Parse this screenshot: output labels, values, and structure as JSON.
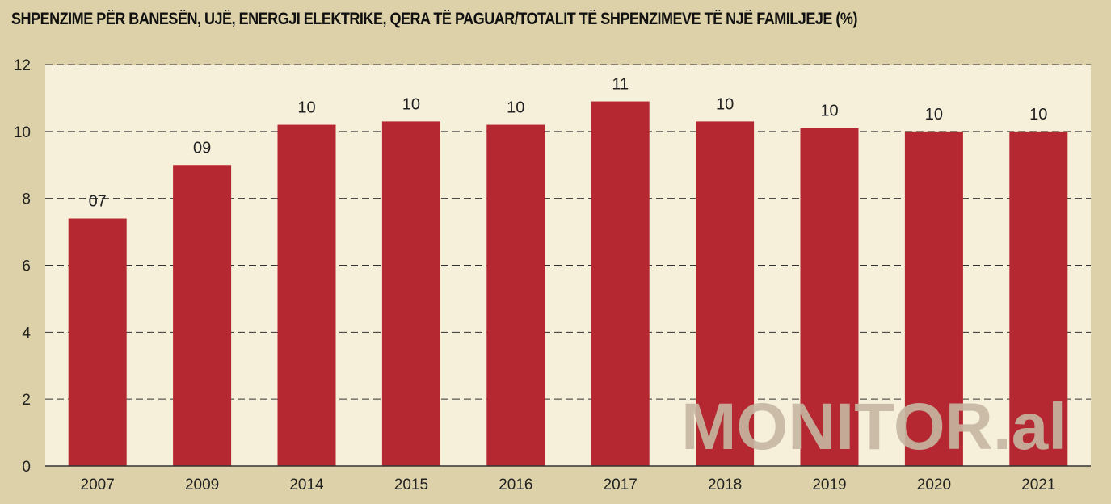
{
  "chart_data": {
    "type": "bar",
    "title": "SHPENZIME PËR BANESËN, UJË, ENERGJI ELEKTRIKE, QERA TË PAGUAR/TOTALIT TË SHPENZIMEVE TË NJË FAMILJEJE (%)",
    "categories": [
      "2007",
      "2009",
      "2014",
      "2015",
      "2016",
      "2017",
      "2018",
      "2019",
      "2020",
      "2021"
    ],
    "values": [
      7.4,
      9.0,
      10.2,
      10.3,
      10.2,
      10.9,
      10.3,
      10.1,
      10.0,
      10.0
    ],
    "data_labels": [
      "07",
      "09",
      "10",
      "10",
      "10",
      "11",
      "10",
      "10",
      "10",
      "10"
    ],
    "y_ticks": [
      "0",
      "2",
      "4",
      "6",
      "8",
      "10",
      "12"
    ],
    "ylim": [
      0,
      12
    ],
    "grid": true,
    "xlabel": "",
    "ylabel": "",
    "colors": {
      "bar": "#b52831",
      "plot_bg": "#f6f0db",
      "page_bg": "#dcd1a8",
      "grid": "#333333"
    }
  },
  "watermark": "MONITOR.al"
}
